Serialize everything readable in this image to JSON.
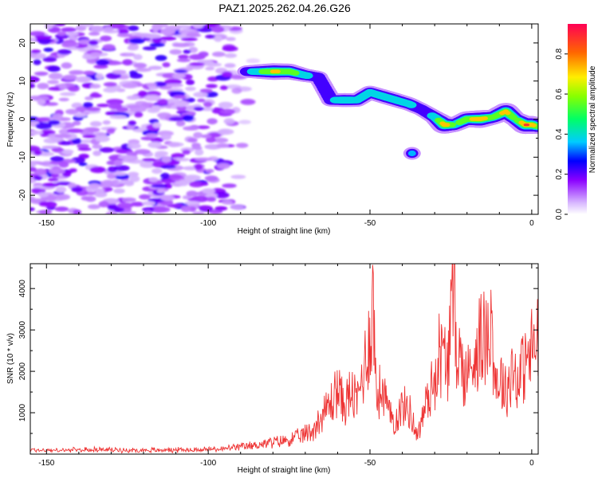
{
  "title": "PAZ1.2025.262.04.26.G26",
  "chart_data": [
    {
      "type": "heatmap",
      "xlabel": "Height of straight line (km)",
      "ylabel": "Frequency (Hz)",
      "xlim": [
        -155,
        2
      ],
      "ylim": [
        -25,
        25
      ],
      "x_ticks": [
        -150,
        -100,
        -50,
        0
      ],
      "y_ticks": [
        -20,
        -10,
        0,
        10,
        20
      ],
      "colorbar": {
        "label": "Normalized spectral amplitude",
        "range": [
          0,
          0.95
        ],
        "ticks": [
          0.0,
          0.2,
          0.4,
          0.6,
          0.8
        ]
      },
      "ridge": {
        "x": [
          -88,
          -80,
          -75,
          -70,
          -66,
          -62,
          -58,
          -54,
          -50,
          -46,
          -42,
          -38,
          -34,
          -30,
          -27,
          -24,
          -20,
          -16,
          -12,
          -8,
          -5,
          -2,
          0,
          2
        ],
        "y": [
          12.5,
          12.5,
          12.5,
          11.5,
          11.0,
          5.0,
          5.0,
          5.0,
          7.0,
          6.0,
          5.0,
          4.0,
          2.5,
          0.5,
          -1.5,
          -1.5,
          0.0,
          0.0,
          0.5,
          2.0,
          0.0,
          -1.5,
          -1.5,
          -2.0
        ],
        "amplitude": [
          0.3,
          0.75,
          0.65,
          0.4,
          0.3,
          0.35,
          0.45,
          0.4,
          0.4,
          0.45,
          0.45,
          0.4,
          0.3,
          0.4,
          0.85,
          0.5,
          0.65,
          0.85,
          0.55,
          0.8,
          0.5,
          0.9,
          0.85,
          0.5
        ]
      },
      "extra_blobs": [
        {
          "x": -37,
          "y": -9,
          "amplitude": 0.35
        }
      ],
      "noise_region": {
        "x": [
          -155,
          -85
        ],
        "y": [
          -25,
          25
        ],
        "amplitude": [
          0.02,
          0.2
        ]
      }
    },
    {
      "type": "line",
      "xlabel": "Height of straight line (km)",
      "ylabel": "SNR (10 * v/v)",
      "xlim": [
        -155,
        2
      ],
      "ylim": [
        0,
        4600
      ],
      "x_ticks": [
        -150,
        -100,
        -50,
        0
      ],
      "y_ticks": [
        1000,
        2000,
        3000,
        4000
      ],
      "series": [
        {
          "color": "#ee3333",
          "x": [
            -155,
            -145,
            -135,
            -125,
            -115,
            -105,
            -95,
            -88,
            -82,
            -76,
            -72,
            -68,
            -65,
            -62,
            -60,
            -58,
            -56,
            -54,
            -52,
            -50,
            -49,
            -48,
            -46,
            -44,
            -42,
            -40,
            -38,
            -36,
            -35,
            -34,
            -32,
            -30,
            -29,
            -28,
            -26,
            -24,
            -23,
            -22,
            -20,
            -18,
            -16,
            -14,
            -13,
            -12,
            -11,
            -10,
            -8,
            -6,
            -4,
            -2,
            0,
            2
          ],
          "y": [
            100,
            90,
            110,
            95,
            100,
            105,
            130,
            190,
            260,
            330,
            420,
            560,
            900,
            1250,
            1600,
            1150,
            1500,
            1250,
            2000,
            2950,
            3650,
            1400,
            1600,
            900,
            850,
            1150,
            1100,
            600,
            500,
            850,
            1400,
            1800,
            2500,
            2350,
            2250,
            4000,
            2500,
            2250,
            1800,
            2400,
            2800,
            2700,
            3800,
            2550,
            1700,
            1900,
            1500,
            2100,
            1800,
            2200,
            2500,
            2700
          ]
        }
      ]
    }
  ]
}
